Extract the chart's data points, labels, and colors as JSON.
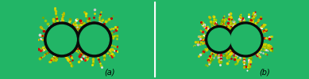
{
  "bg_color": "#22b566",
  "cnt_color": "#0a0a0a",
  "figsize": [
    3.89,
    1.0
  ],
  "dpi": 100,
  "label_fontsize": 7,
  "panel_a_label": "(a)",
  "panel_b_label": "(b)",
  "sds_colors": [
    "#cccc00",
    "#dddd00",
    "#aaaa00",
    "#bbbb00",
    "#cc0000",
    "#dd1111",
    "#e0e0e0",
    "#cccccc",
    "#88bb00",
    "#99cc00"
  ],
  "dot_size_small": 0.8,
  "dot_size_large": 2.0
}
